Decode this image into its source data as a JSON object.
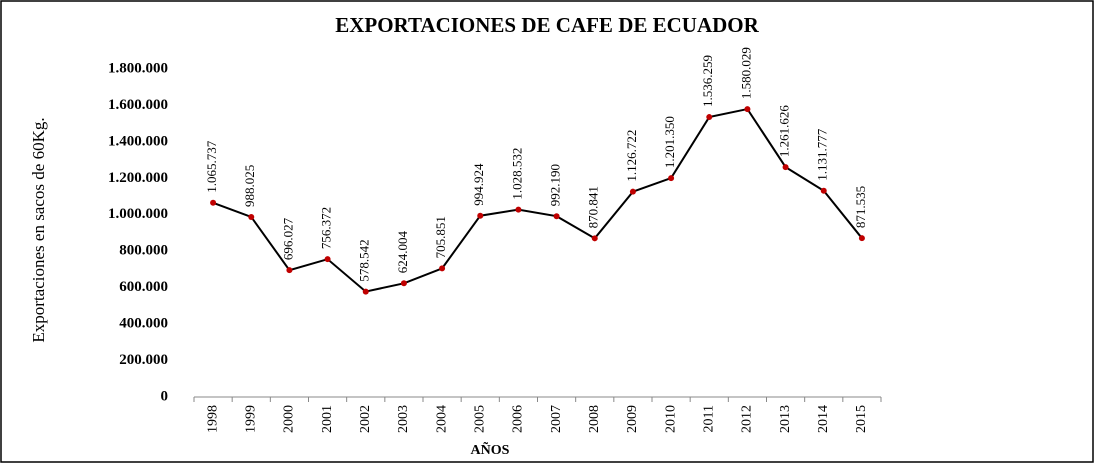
{
  "chart_data": {
    "type": "line",
    "title": "EXPORTACIONES DE CAFE DE ECUADOR",
    "y_label": "Exportaciones  en sacos de 60Kg.",
    "x_label": "AÑOS",
    "categories": [
      "1998",
      "1999",
      "2000",
      "2001",
      "2002",
      "2003",
      "2004",
      "2005",
      "2006",
      "2007",
      "2008",
      "2009",
      "2010",
      "2011",
      "2012",
      "2013",
      "2014",
      "2015"
    ],
    "series": [
      {
        "name": "Exportaciones",
        "color": "#000000",
        "marker_color": "#c00000",
        "values": [
          1065737,
          988025,
          696027,
          756372,
          578542,
          624004,
          705851,
          994924,
          1028532,
          992190,
          870841,
          1126722,
          1201350,
          1536259,
          1580029,
          1261626,
          1131777,
          871535
        ],
        "value_labels": [
          "1.065.737",
          "988.025",
          "696.027",
          "756.372",
          "578.542",
          "624.004",
          "705.851",
          "994.924",
          "1.028.532",
          "992.190",
          "870.841",
          "1.126.722",
          "1.201.350",
          "1.536.259",
          "1.580.029",
          "1.261.626",
          "1.131.777",
          "871.535"
        ]
      }
    ],
    "ylim": [
      0,
      1800000
    ],
    "yticks": [
      0,
      {
        "value": 200000,
        "label": "200.000"
      },
      {
        "value": 400000,
        "label": "400.000"
      },
      {
        "value": 600000,
        "label": "600.000"
      },
      {
        "value": 800000,
        "label": "800.000"
      },
      {
        "value": 1000000,
        "label": "1.000.000"
      },
      {
        "value": 1200000,
        "label": "1.200.000"
      },
      {
        "value": 1400000,
        "label": "1.400.000"
      },
      {
        "value": 1600000,
        "label": "1.600.000"
      },
      {
        "value": 1800000,
        "label": "1.800.000"
      }
    ],
    "grid": false
  }
}
